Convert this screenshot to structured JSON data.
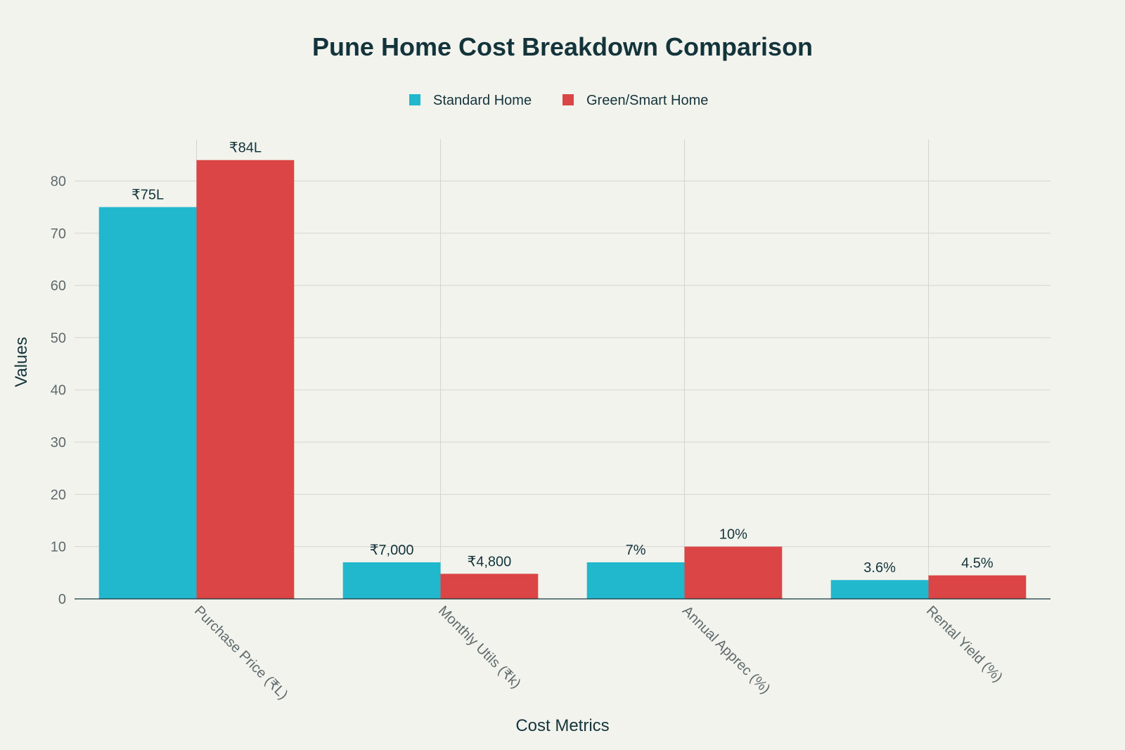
{
  "chart_data": {
    "type": "bar",
    "title": "Pune Home Cost Breakdown Comparison",
    "xlabel": "Cost Metrics",
    "ylabel": "Values",
    "ylim": [
      0,
      88
    ],
    "yticks": [
      0,
      10,
      20,
      30,
      40,
      50,
      60,
      70,
      80
    ],
    "categories": [
      "Purchase Price (₹L)",
      "Monthly Utils (₹k)",
      "Annual Apprec (%)",
      "Rental Yield (%)"
    ],
    "series": [
      {
        "name": "Standard Home",
        "color": "#21b8cd",
        "values": [
          75,
          7,
          7,
          3.6
        ],
        "labels": [
          "₹75L",
          "₹7,000",
          "7%",
          "3.6%"
        ]
      },
      {
        "name": "Green/Smart Home",
        "color": "#db4545",
        "values": [
          84,
          4.8,
          10,
          4.5
        ],
        "labels": [
          "₹84L",
          "₹4,800",
          "10%",
          "4.5%"
        ]
      }
    ],
    "legend_position": "top-center",
    "grid": true
  }
}
